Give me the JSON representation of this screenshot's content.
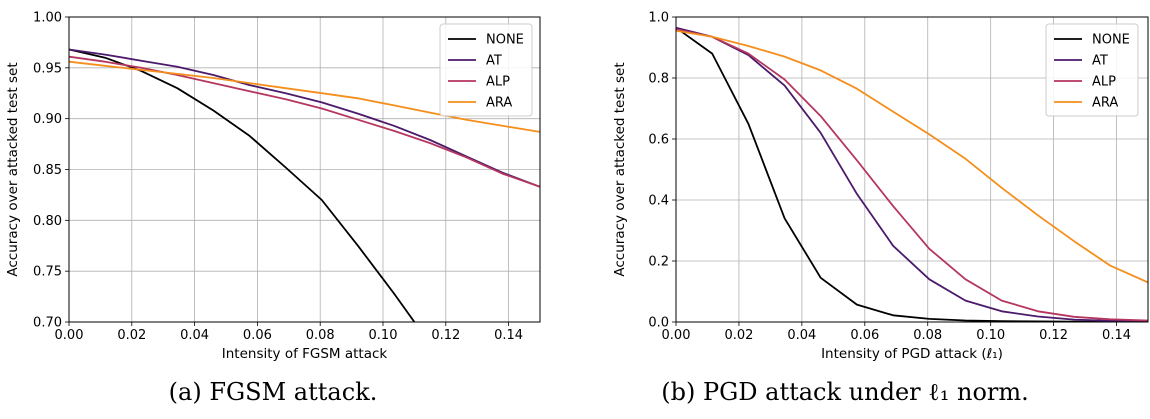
{
  "chart_data": [
    {
      "type": "line",
      "xlabel": "Intensity of FGSM attack",
      "ylabel": "Accuracy over attacked test set",
      "xlim": [
        0.0,
        0.15
      ],
      "ylim": [
        0.7,
        1.0
      ],
      "x_ticks": [
        "0.00",
        "0.02",
        "0.04",
        "0.06",
        "0.08",
        "0.10",
        "0.12",
        "0.14"
      ],
      "y_ticks": [
        "0.70",
        "0.75",
        "0.80",
        "0.85",
        "0.90",
        "0.95",
        "1.00"
      ],
      "grid": true,
      "legend_position": "top-right",
      "caption": "(a) FGSM attack.",
      "series": [
        {
          "name": "NONE",
          "color": "#000000",
          "x": [
            0.0,
            0.0115,
            0.023,
            0.0345,
            0.046,
            0.0575,
            0.069,
            0.0805,
            0.092,
            0.1035,
            0.11
          ],
          "y": [
            0.968,
            0.96,
            0.947,
            0.93,
            0.908,
            0.883,
            0.852,
            0.82,
            0.775,
            0.728,
            0.7
          ]
        },
        {
          "name": "AT",
          "color": "#4b1a6b",
          "x": [
            0.0,
            0.0115,
            0.023,
            0.0345,
            0.046,
            0.0575,
            0.069,
            0.0805,
            0.092,
            0.1035,
            0.115,
            0.1265,
            0.138,
            0.15
          ],
          "y": [
            0.968,
            0.963,
            0.957,
            0.951,
            0.943,
            0.933,
            0.925,
            0.916,
            0.905,
            0.893,
            0.879,
            0.863,
            0.847,
            0.833
          ]
        },
        {
          "name": "ALP",
          "color": "#b5365e",
          "x": [
            0.0,
            0.0115,
            0.023,
            0.0345,
            0.046,
            0.0575,
            0.069,
            0.0805,
            0.092,
            0.1035,
            0.115,
            0.1265,
            0.138,
            0.15
          ],
          "y": [
            0.961,
            0.956,
            0.95,
            0.943,
            0.935,
            0.927,
            0.919,
            0.91,
            0.899,
            0.888,
            0.876,
            0.862,
            0.846,
            0.833
          ]
        },
        {
          "name": "ARA",
          "color": "#f58e1b",
          "x": [
            0.0,
            0.0115,
            0.023,
            0.0345,
            0.046,
            0.0575,
            0.069,
            0.0805,
            0.092,
            0.1035,
            0.115,
            0.1265,
            0.138,
            0.15
          ],
          "y": [
            0.956,
            0.952,
            0.948,
            0.944,
            0.94,
            0.935,
            0.93,
            0.925,
            0.92,
            0.913,
            0.906,
            0.899,
            0.893,
            0.887
          ]
        }
      ]
    },
    {
      "type": "line",
      "xlabel": "Intensity of PGD attack (ℓ₁)",
      "ylabel": "Accuracy over attacked test set",
      "xlim": [
        0.0,
        0.15
      ],
      "ylim": [
        0.0,
        1.0
      ],
      "x_ticks": [
        "0.00",
        "0.02",
        "0.04",
        "0.06",
        "0.08",
        "0.10",
        "0.12",
        "0.14"
      ],
      "y_ticks": [
        "0.0",
        "0.2",
        "0.4",
        "0.6",
        "0.8",
        "1.0"
      ],
      "grid": true,
      "legend_position": "top-right",
      "caption": "(b) PGD attack under ℓ₁ norm.",
      "series": [
        {
          "name": "NONE",
          "color": "#000000",
          "x": [
            0.0,
            0.0115,
            0.023,
            0.0345,
            0.046,
            0.0575,
            0.069,
            0.0805,
            0.092,
            0.1035,
            0.115,
            0.1265,
            0.138,
            0.15
          ],
          "y": [
            0.965,
            0.88,
            0.65,
            0.34,
            0.145,
            0.057,
            0.022,
            0.01,
            0.005,
            0.003,
            0.002,
            0.001,
            0.001,
            0.001
          ]
        },
        {
          "name": "AT",
          "color": "#4b1a6b",
          "x": [
            0.0,
            0.0115,
            0.023,
            0.0345,
            0.046,
            0.0575,
            0.069,
            0.0805,
            0.092,
            0.1035,
            0.115,
            0.1265,
            0.138,
            0.15
          ],
          "y": [
            0.965,
            0.935,
            0.875,
            0.775,
            0.62,
            0.42,
            0.25,
            0.14,
            0.07,
            0.035,
            0.018,
            0.008,
            0.004,
            0.002
          ]
        },
        {
          "name": "ALP",
          "color": "#b5365e",
          "x": [
            0.0,
            0.0115,
            0.023,
            0.0345,
            0.046,
            0.0575,
            0.069,
            0.0805,
            0.092,
            0.1035,
            0.115,
            0.1265,
            0.138,
            0.15
          ],
          "y": [
            0.96,
            0.935,
            0.88,
            0.795,
            0.675,
            0.53,
            0.38,
            0.24,
            0.14,
            0.07,
            0.035,
            0.017,
            0.009,
            0.005
          ]
        },
        {
          "name": "ARA",
          "color": "#f58e1b",
          "x": [
            0.0,
            0.0115,
            0.023,
            0.0345,
            0.046,
            0.0575,
            0.069,
            0.0805,
            0.092,
            0.1035,
            0.115,
            0.1265,
            0.138,
            0.15
          ],
          "y": [
            0.955,
            0.935,
            0.905,
            0.87,
            0.825,
            0.765,
            0.69,
            0.615,
            0.535,
            0.44,
            0.35,
            0.265,
            0.185,
            0.13
          ]
        }
      ]
    }
  ]
}
